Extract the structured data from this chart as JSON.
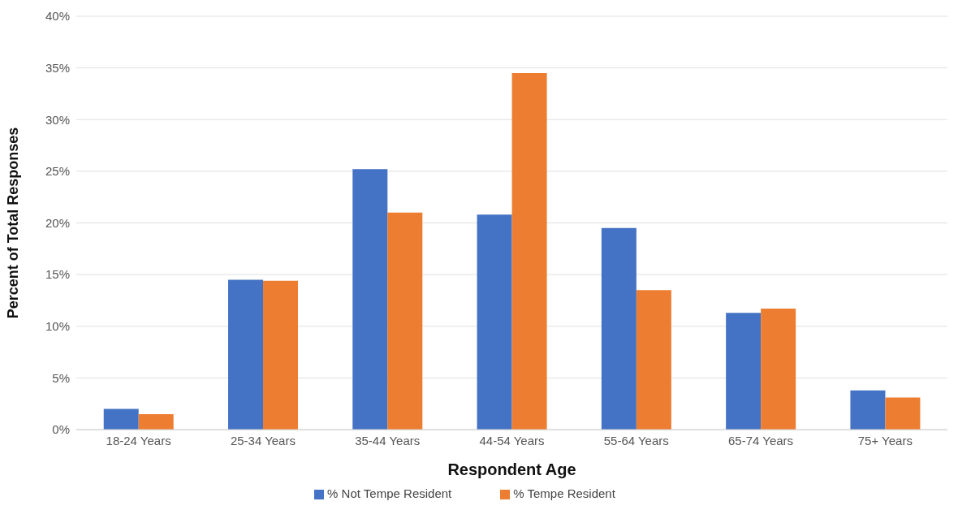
{
  "chart_data": {
    "type": "bar",
    "xlabel": "Respondent Age",
    "ylabel": "Percent of Total Responses",
    "categories": [
      "18-24 Years",
      "25-34 Years",
      "35-44 Years",
      "44-54 Years",
      "55-64 Years",
      "65-74 Years",
      "75+ Years"
    ],
    "series": [
      {
        "name": "% Not Tempe Resident",
        "color": "#4472c4",
        "values": [
          2.0,
          14.5,
          25.2,
          20.8,
          19.5,
          11.3,
          3.8
        ]
      },
      {
        "name": "% Tempe Resident",
        "color": "#ed7d31",
        "values": [
          1.5,
          14.4,
          21.0,
          34.5,
          13.5,
          11.7,
          3.1
        ]
      }
    ],
    "ylim": [
      0,
      40
    ],
    "yticks": [
      {
        "value": 0,
        "label": "0%"
      },
      {
        "value": 5,
        "label": "5%"
      },
      {
        "value": 10,
        "label": "10%"
      },
      {
        "value": 15,
        "label": "15%"
      },
      {
        "value": 20,
        "label": "20%"
      },
      {
        "value": 25,
        "label": "25%"
      },
      {
        "value": 30,
        "label": "30%"
      },
      {
        "value": 35,
        "label": "35%"
      },
      {
        "value": 40,
        "label": "40%"
      }
    ],
    "grid": "y",
    "legend": "bottom"
  }
}
